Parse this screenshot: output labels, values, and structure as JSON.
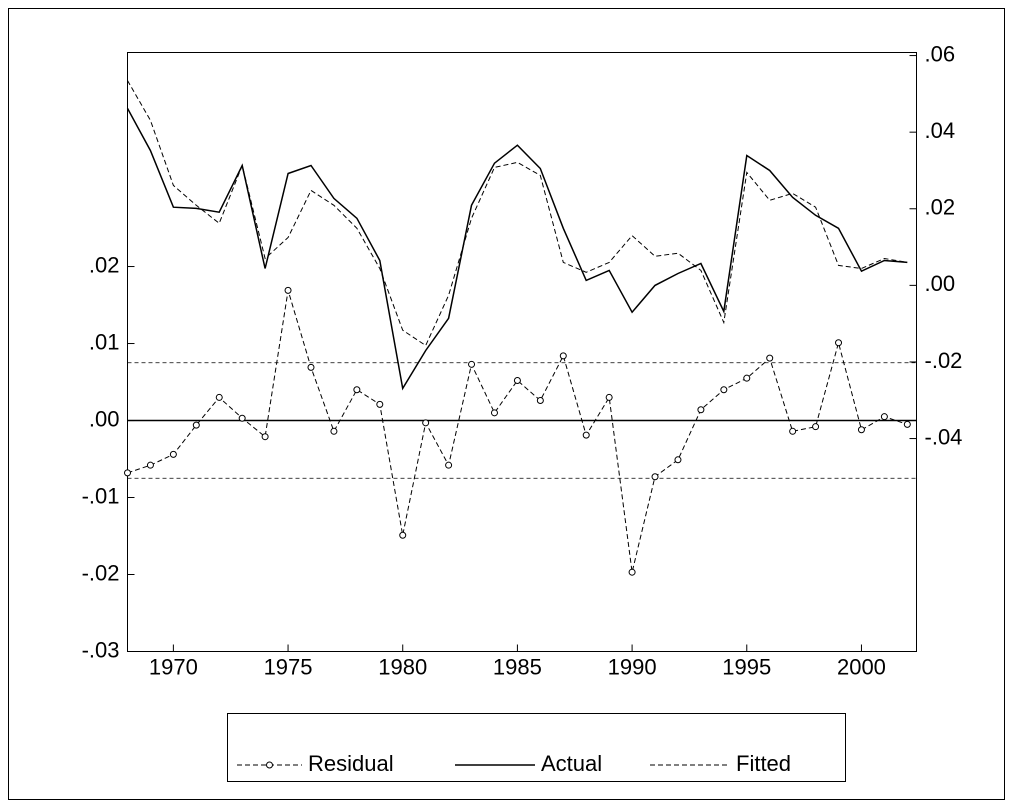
{
  "chart_data": {
    "type": "line",
    "x": [
      1968,
      1969,
      1970,
      1971,
      1972,
      1973,
      1974,
      1975,
      1976,
      1977,
      1978,
      1979,
      1980,
      1981,
      1982,
      1983,
      1984,
      1985,
      1986,
      1987,
      1988,
      1989,
      1990,
      1991,
      1992,
      1993,
      1994,
      1995,
      1996,
      1997,
      1998,
      1999,
      2000,
      2001,
      2002
    ],
    "xlim": [
      1968,
      2002.4
    ],
    "xticks": [
      1970,
      1975,
      1980,
      1985,
      1990,
      1995,
      2000
    ],
    "ylim": [
      -0.03,
      0.0478
    ],
    "yticks": [
      {
        "value": -0.03,
        "label": "-.03"
      },
      {
        "value": -0.02,
        "label": "-.02"
      },
      {
        "value": -0.01,
        "label": "-.01"
      },
      {
        "value": 0,
        "label": ".00"
      },
      {
        "value": 0.01,
        "label": ".01"
      },
      {
        "value": 0.02,
        "label": ".02"
      }
    ],
    "y2lim": [
      -0.0956,
      0.0608
    ],
    "y2ticks": [
      {
        "value": -0.04,
        "label": "-.04"
      },
      {
        "value": -0.02,
        "label": "-.02"
      },
      {
        "value": 0,
        "label": ".00"
      },
      {
        "value": 0.02,
        "label": ".02"
      },
      {
        "value": 0.04,
        "label": ".04"
      },
      {
        "value": 0.06,
        "label": ".06"
      }
    ],
    "hlines": [
      {
        "value": 0,
        "dash": false
      },
      {
        "value": 0.0075,
        "dash": true
      },
      {
        "value": -0.0075,
        "dash": true
      }
    ],
    "series": [
      {
        "name": "Residual",
        "color": "#000000",
        "axis": "y",
        "dash": true,
        "marker": true,
        "values": [
          -0.0068,
          -0.0058,
          -0.0044,
          -0.0006,
          0.003,
          0.0003,
          -0.0021,
          0.0169,
          0.0069,
          -0.0014,
          0.004,
          0.0021,
          -0.0149,
          -0.0003,
          -0.0058,
          0.0073,
          0.001,
          0.0052,
          0.0026,
          0.0084,
          -0.0019,
          0.003,
          -0.0197,
          -0.0073,
          -0.0051,
          0.0014,
          0.004,
          0.0055,
          0.0081,
          -0.0014,
          -0.0008,
          0.0101,
          -0.0012,
          0.0005,
          -0.0005
        ]
      },
      {
        "name": "Actual",
        "color": "#000000",
        "axis": "y2",
        "dash": false,
        "marker": false,
        "values": [
          0.0462,
          0.0352,
          0.0204,
          0.0201,
          0.0191,
          0.0313,
          0.0044,
          0.0292,
          0.0313,
          0.0227,
          0.0175,
          0.0065,
          -0.0269,
          -0.017,
          -0.0086,
          0.0209,
          0.0319,
          0.0366,
          0.0305,
          0.0149,
          0.0013,
          0.0039,
          -0.007,
          0,
          0.0031,
          0.0057,
          -0.0068,
          0.0339,
          0.03,
          0.023,
          0.0183,
          0.0149,
          0.0037,
          0.0065,
          0.006
        ]
      },
      {
        "name": "Fitted",
        "color": "#000000",
        "axis": "y2",
        "dash": true,
        "marker": false,
        "values": [
          0.0535,
          0.0431,
          0.0261,
          0.0209,
          0.0162,
          0.0313,
          0.007,
          0.0125,
          0.0248,
          0.0209,
          0.0149,
          0.0044,
          -0.0117,
          -0.0157,
          -0.0026,
          0.0175,
          0.0308,
          0.0321,
          0.0287,
          0.006,
          0.0034,
          0.006,
          0.013,
          0.0076,
          0.0084,
          0.0039,
          -0.0097,
          0.0295,
          0.0222,
          0.024,
          0.0204,
          0.0052,
          0.0044,
          0.007,
          0.006
        ]
      }
    ]
  }
}
